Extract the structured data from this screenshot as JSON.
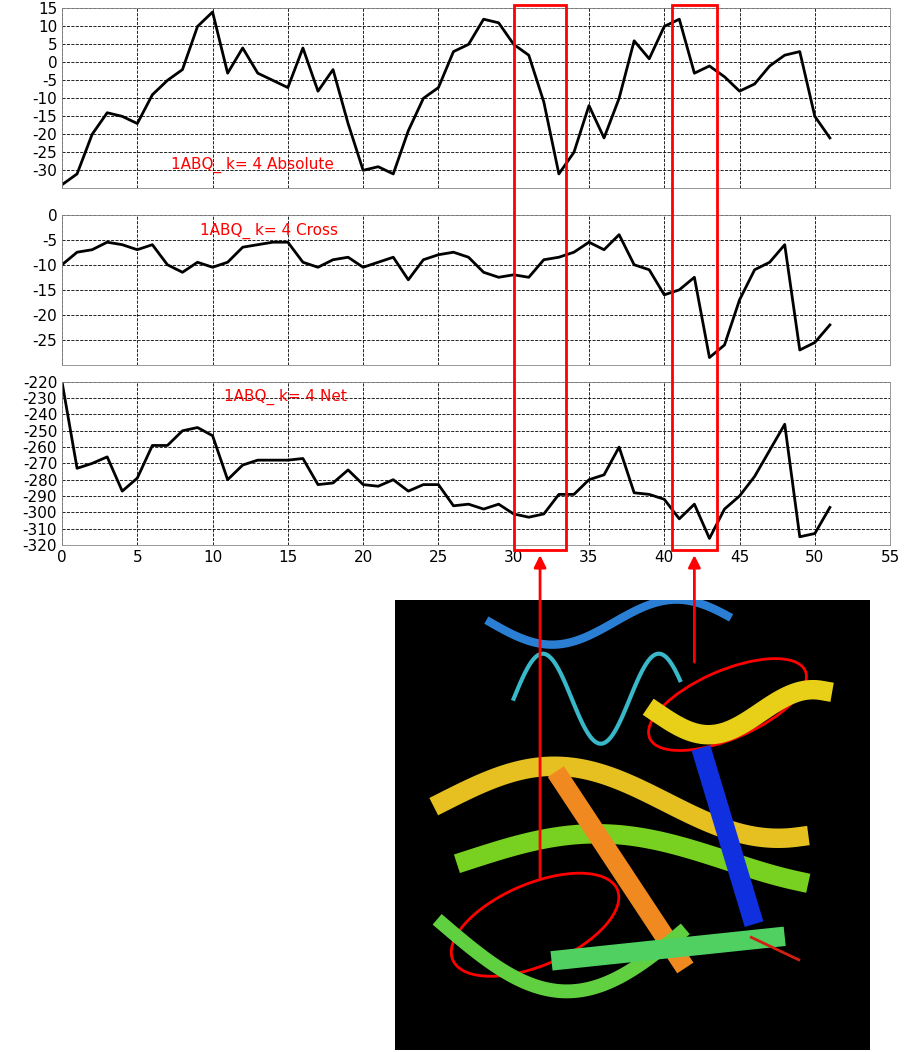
{
  "chart_data": [
    {
      "type": "line",
      "title": "1ABQ_ k= 4 Absolute",
      "color": "#000000",
      "grid": true,
      "tick_labels": "y",
      "x": [
        0,
        1,
        2,
        3,
        4,
        5,
        6,
        7,
        8,
        9,
        10,
        11,
        12,
        13,
        14,
        15,
        16,
        17,
        18,
        19,
        20,
        21,
        22,
        23,
        24,
        25,
        26,
        27,
        28,
        29,
        30,
        31,
        32,
        33,
        34,
        35,
        36,
        37,
        38,
        39,
        40,
        41,
        42,
        43,
        44,
        45,
        46,
        47,
        48,
        49,
        50,
        51
      ],
      "values": [
        -34,
        -31,
        -20,
        -14,
        -15,
        -17,
        -9,
        -5,
        -2,
        10,
        14,
        -3,
        4,
        -3,
        -5,
        -7,
        4,
        -8,
        -2,
        -17,
        -30,
        -29,
        -31,
        -19,
        -10,
        -7,
        3,
        5,
        12,
        11,
        5,
        2,
        -11,
        -31,
        -25,
        -12,
        -21,
        -10,
        6,
        1,
        10,
        12,
        -3,
        -1,
        -4,
        -8,
        -6,
        -1,
        2,
        3,
        -15,
        -21
      ],
      "xlim": [
        0,
        55
      ],
      "xticks": [
        0,
        5,
        10,
        15,
        20,
        25,
        30,
        35,
        40,
        45,
        50,
        55
      ],
      "ylim": [
        -35,
        15
      ],
      "yticks": [
        15,
        10,
        5,
        0,
        -5,
        -10,
        -15,
        -20,
        -25,
        -30
      ]
    },
    {
      "type": "line",
      "title": "1ABQ_ k= 4 Cross",
      "color": "#000000",
      "grid": true,
      "tick_labels": "y",
      "x": [
        0,
        1,
        2,
        3,
        4,
        5,
        6,
        7,
        8,
        9,
        10,
        11,
        12,
        13,
        14,
        15,
        16,
        17,
        18,
        19,
        20,
        21,
        22,
        23,
        24,
        25,
        26,
        27,
        28,
        29,
        30,
        31,
        32,
        33,
        34,
        35,
        36,
        37,
        38,
        39,
        40,
        41,
        42,
        43,
        44,
        45,
        46,
        47,
        48,
        49,
        50,
        51
      ],
      "values": [
        -10,
        -7.5,
        -7,
        -5.5,
        -6,
        -7,
        -6,
        -10,
        -11.5,
        -9.5,
        -10.5,
        -9.5,
        -6.5,
        -6,
        -5.5,
        -5.5,
        -9.5,
        -10.5,
        -9,
        -8.5,
        -10.5,
        -9.5,
        -8.5,
        -13,
        -9,
        -8,
        -7.5,
        -8.5,
        -11.5,
        -12.5,
        -12,
        -12.5,
        -9,
        -8.5,
        -7.5,
        -5.5,
        -7,
        -4,
        -10,
        -11,
        -16,
        -15,
        -12.5,
        -28.5,
        -26,
        -17,
        -11,
        -9.5,
        -6,
        -27,
        -25.5,
        -22
      ],
      "xlim": [
        0,
        55
      ],
      "xticks": [
        0,
        5,
        10,
        15,
        20,
        25,
        30,
        35,
        40,
        45,
        50,
        55
      ],
      "ylim": [
        -30,
        0
      ],
      "yticks": [
        0,
        -5,
        -10,
        -15,
        -20,
        -25
      ]
    },
    {
      "type": "line",
      "title": "1ABQ_ k= 4 Net",
      "color": "#000000",
      "grid": true,
      "x": [
        0,
        1,
        2,
        3,
        4,
        5,
        6,
        7,
        8,
        9,
        10,
        11,
        12,
        13,
        14,
        15,
        16,
        17,
        18,
        19,
        20,
        21,
        22,
        23,
        24,
        25,
        26,
        27,
        28,
        29,
        30,
        31,
        32,
        33,
        34,
        35,
        36,
        37,
        38,
        39,
        40,
        41,
        42,
        43,
        44,
        45,
        46,
        47,
        48,
        49,
        50,
        51
      ],
      "values": [
        -220,
        -273,
        -270,
        -266,
        -287,
        -279,
        -259,
        -259,
        -250,
        -248,
        -253,
        -280,
        -271,
        -268,
        -268,
        -268,
        -267,
        -283,
        -282,
        -274,
        -283,
        -284,
        -280,
        -287,
        -283,
        -283,
        -296,
        -295,
        -298,
        -295,
        -301,
        -303,
        -301,
        -289,
        -289,
        -280,
        -277,
        -260,
        -288,
        -289,
        -292,
        -304,
        -295,
        -316,
        -298,
        -290,
        -278,
        -262,
        -246,
        -315,
        -313,
        -297
      ],
      "xlim": [
        0,
        55
      ],
      "xticks": [
        0,
        5,
        10,
        15,
        20,
        25,
        30,
        35,
        40,
        45,
        50,
        55
      ],
      "ylim": [
        -320,
        -220
      ],
      "yticks": [
        -220,
        -230,
        -240,
        -250,
        -260,
        -270,
        -280,
        -290,
        -300,
        -310,
        -320
      ]
    }
  ],
  "highlight_regions": [
    [
      30,
      33.5
    ],
    [
      40.5,
      43.5
    ]
  ]
}
